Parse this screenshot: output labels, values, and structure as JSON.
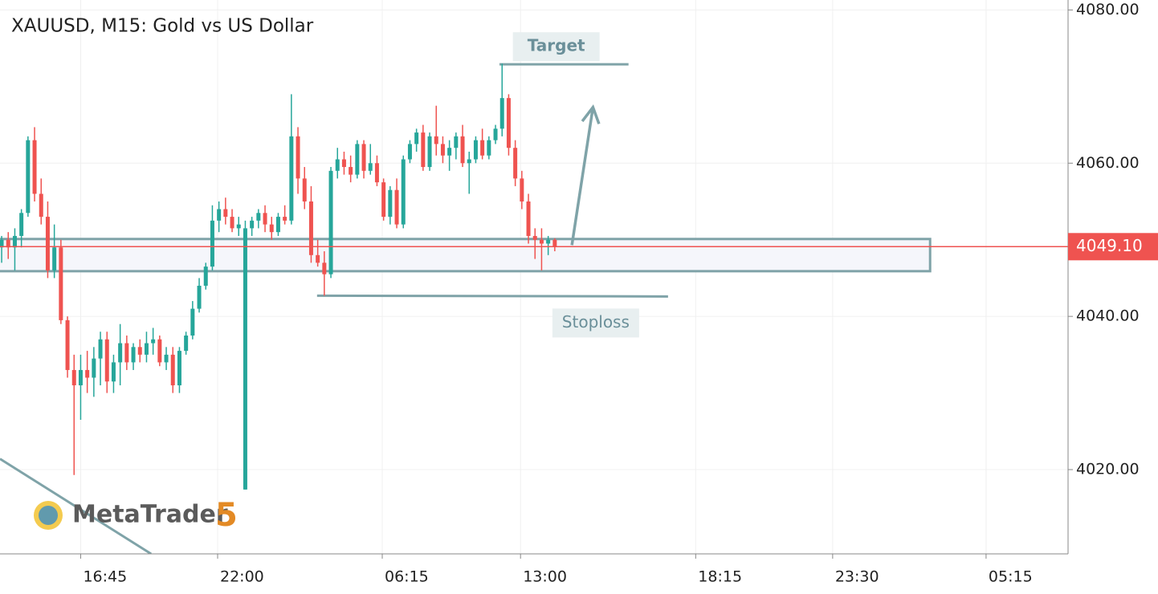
{
  "chart_data": {
    "type": "candlestick",
    "title": "XAUUSD, M15: Gold vs US Dollar",
    "watermark": {
      "name": "MetaTrader",
      "version": "5"
    },
    "up_color": "#26a69a",
    "down_color": "#ef5350",
    "grid": true,
    "xlim": [
      -0.25,
      161.95
    ],
    "ylim": [
      4009,
      4081.3
    ],
    "xticks": [
      {
        "value": 12,
        "label": "16:45"
      },
      {
        "value": 32.8,
        "label": "22:00"
      },
      {
        "value": 57.8,
        "label": "06:15"
      },
      {
        "value": 78.8,
        "label": "13:00"
      },
      {
        "value": 105.4,
        "label": "18:15"
      },
      {
        "value": 126.2,
        "label": "23:30"
      },
      {
        "value": 149.5,
        "label": "05:15"
      }
    ],
    "yticks": [
      {
        "value": 4020,
        "label": "4020.00"
      },
      {
        "value": 4040,
        "label": "4040.00"
      },
      {
        "value": 4060,
        "label": "4060.00"
      },
      {
        "value": 4080,
        "label": "4080.00"
      }
    ],
    "current_price": {
      "value": 4049.1,
      "label": "4049.10",
      "color": "#ef5350"
    },
    "open": [
      4049,
      4050,
      4049,
      4050.5,
      4053.5,
      4063,
      4056,
      4053,
      4046,
      4049,
      4039.5,
      4033,
      4031,
      4033,
      4032,
      4034.5,
      4037,
      4031.5,
      4034,
      4036.5,
      4034,
      4036,
      4035,
      4036.5,
      4037,
      4034,
      4035,
      4031,
      4035.5,
      4037.5,
      4041,
      4044,
      4046.5,
      4052.5,
      4054,
      4053,
      4051.5,
      4017.4,
      4051.5,
      4052.5,
      4053.5,
      4052,
      4051,
      4053,
      4052.5,
      4063.5,
      4058,
      4055,
      4048,
      4047,
      4045.5,
      4059,
      4060.5,
      4059.5,
      4058.5,
      4062.5,
      4059,
      4060,
      4057.5,
      4053,
      4056.5,
      4052,
      4060.5,
      4062.5,
      4064,
      4059.5,
      4063.5,
      4062.5,
      4061,
      4062,
      4063.5,
      4060,
      4060.5,
      4063,
      4061,
      4063,
      4064.5,
      4068.5,
      4062,
      4058,
      4055,
      4050.5,
      4050,
      4049.5,
      4050
    ],
    "high": [
      4050.5,
      4051,
      4051.5,
      4054,
      4063.5,
      4064.7,
      4058,
      4055,
      4052,
      4050,
      4040,
      4035,
      4035,
      4035.5,
      4036,
      4038,
      4038,
      4035,
      4039,
      4037.5,
      4036.5,
      4037,
      4038,
      4038.5,
      4037.5,
      4036,
      4036,
      4036,
      4038,
      4042,
      4045,
      4047,
      4054.5,
      4055,
      4055.5,
      4054,
      4053,
      4052.5,
      4053,
      4054,
      4054.5,
      4053,
      4053.5,
      4054.5,
      4069,
      4064.7,
      4059.5,
      4057,
      4050,
      4048.5,
      4059.5,
      4062,
      4061.5,
      4061,
      4063,
      4063,
      4062.5,
      4061,
      4058,
      4057,
      4058,
      4061,
      4063,
      4064.5,
      4065,
      4064,
      4067.5,
      4063.5,
      4063,
      4064,
      4065,
      4061.5,
      4063.5,
      4064.5,
      4063.5,
      4065,
      4073,
      4069,
      4063,
      4059,
      4056,
      4051.5,
      4051.5,
      4050.5,
      4050.2
    ],
    "low": [
      4047,
      4047.5,
      4046,
      4049,
      4053,
      4055,
      4052,
      4045,
      4045,
      4039,
      4032,
      4019.3,
      4026.5,
      4030,
      4029.5,
      4031,
      4030,
      4030,
      4031,
      4033,
      4033,
      4034,
      4034,
      4035,
      4033.5,
      4033,
      4030,
      4030,
      4035,
      4037,
      4040.5,
      4043.5,
      4046,
      4051,
      4052,
      4051,
      4050.5,
      4017.4,
      4050.5,
      4051.5,
      4051,
      4050,
      4050.5,
      4052,
      4052,
      4056,
      4054,
      4047,
      4046.5,
      4042.7,
      4045,
      4058,
      4058.5,
      4057.5,
      4058,
      4058,
      4058.5,
      4057,
      4052.5,
      4052,
      4051.5,
      4051.5,
      4060,
      4061.5,
      4059,
      4059,
      4061,
      4060,
      4059,
      4060.5,
      4059.5,
      4056,
      4060,
      4060.5,
      4060.5,
      4062.5,
      4063.5,
      4061,
      4057,
      4054,
      4049.5,
      4047.5,
      4046,
      4048,
      4048.5
    ],
    "close": [
      4050,
      4049,
      4050.5,
      4053.5,
      4063,
      4056,
      4053,
      4046,
      4049,
      4039.5,
      4033,
      4031,
      4033,
      4032,
      4034.5,
      4037,
      4031.5,
      4034,
      4036.5,
      4034,
      4036,
      4035,
      4036.5,
      4037,
      4034,
      4035,
      4031,
      4035.5,
      4037.5,
      4041,
      4044,
      4046.5,
      4052.5,
      4054,
      4053,
      4051.5,
      4052,
      4051.5,
      4052.5,
      4053.5,
      4052,
      4051,
      4053,
      4052.5,
      4063.5,
      4058,
      4055,
      4048,
      4047,
      4045.5,
      4059,
      4060.5,
      4059.5,
      4058.5,
      4062.5,
      4059,
      4060,
      4057.5,
      4053,
      4056.5,
      4052,
      4060.5,
      4062.5,
      4064,
      4059.5,
      4063.5,
      4062.5,
      4061,
      4062,
      4063.5,
      4060,
      4060.5,
      4063,
      4061,
      4063,
      4064.5,
      4068.5,
      4062,
      4058,
      4055,
      4050.5,
      4050,
      4049.5,
      4050,
      4049.1
    ],
    "drawings": [
      {
        "type": "rect",
        "x": [
          -1,
          141
        ],
        "y": [
          4045.9,
          4050.1
        ],
        "color": "#7fa3a8"
      },
      {
        "type": "line",
        "x": [
          75.6,
          95.2
        ],
        "y": [
          4072.9,
          4072.9
        ],
        "label": "Target",
        "color": "#7fa3a8"
      },
      {
        "type": "line",
        "x": [
          47.9,
          101.2
        ],
        "y": [
          4042.7,
          4042.6
        ],
        "label": "Stoploss",
        "color": "#7fa3a8"
      },
      {
        "type": "arrow",
        "x": [
          86.6,
          89.8
        ],
        "y": [
          4049.3,
          4067.3
        ],
        "color": "#7fa3a8"
      },
      {
        "type": "line",
        "x": [
          -0.25,
          22.7
        ],
        "y": [
          4021.4,
          4009
        ],
        "color": "#7fa3a8"
      }
    ]
  }
}
